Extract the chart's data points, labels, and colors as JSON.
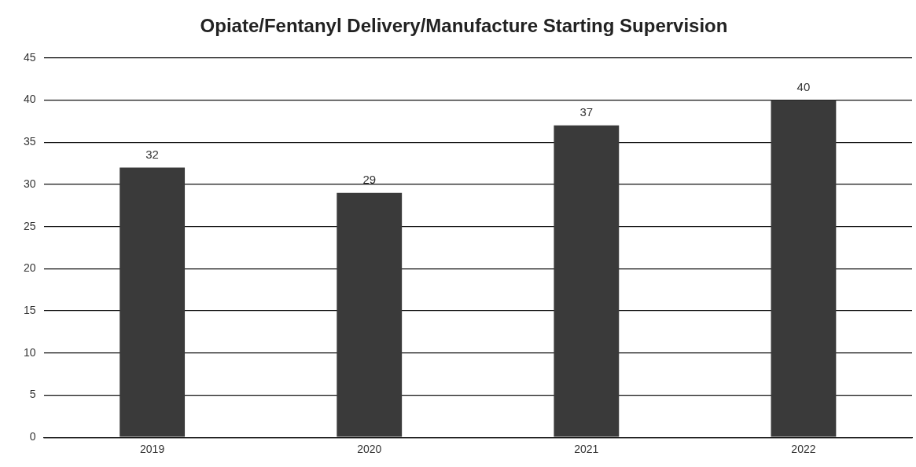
{
  "chart_data": {
    "type": "bar",
    "title": "Opiate/Fentanyl Delivery/Manufacture Starting Supervision",
    "categories": [
      "2019",
      "2020",
      "2021",
      "2022"
    ],
    "values": [
      32,
      29,
      37,
      40
    ],
    "color": "#3a3a3a",
    "ylim": [
      0,
      45
    ],
    "yticks": [
      0,
      5,
      10,
      15,
      20,
      25,
      30,
      35,
      40,
      45
    ],
    "grid": "y",
    "data_labels": true,
    "legend": false
  }
}
